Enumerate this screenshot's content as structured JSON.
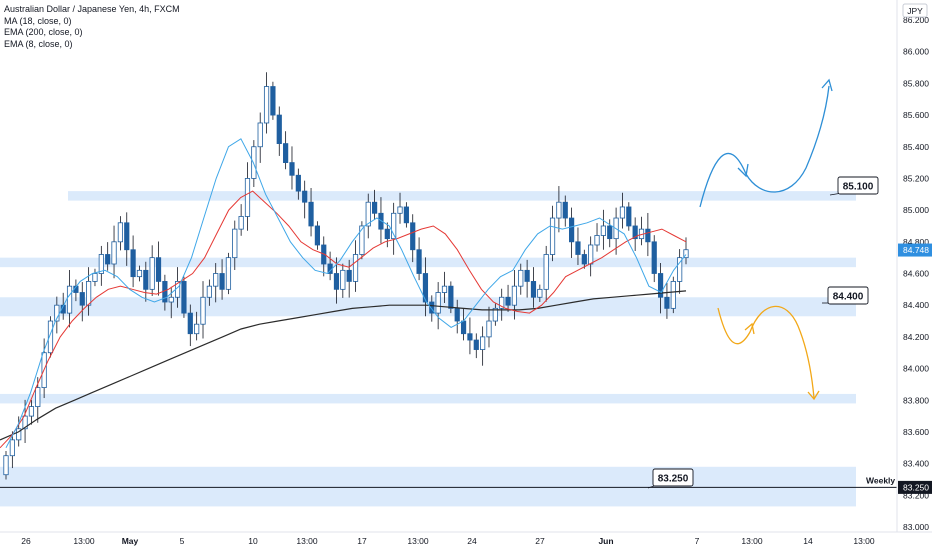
{
  "legend": {
    "title": "Australian Dollar / Japanese Yen, 4h, FXCM",
    "indicators": [
      "MA (18, close, 0)",
      "EMA (200, close, 0)",
      "EMA (8, close, 0)"
    ]
  },
  "currency_badge": "JPY",
  "colors": {
    "zone": "#dbeafb",
    "up": "#1f5fa0",
    "down": "#1f5fa0",
    "ma18": "#e53935",
    "ema200": "#2b2b2b",
    "ema8": "#3fa7e8",
    "bull_arrow": "#2e8fd6",
    "bear_arrow": "#f2a818",
    "last_price_bg": "#2f8fe0",
    "axis_text": "#131722",
    "gridline": "#e0e3eb"
  },
  "chart_data": {
    "type": "candlestick",
    "symbol": "AUDJPY",
    "timeframe": "4h",
    "ylim": [
      83.0,
      86.3
    ],
    "yticks": [
      83.0,
      83.2,
      83.4,
      83.6,
      83.8,
      84.0,
      84.2,
      84.4,
      84.6,
      84.8,
      85.0,
      85.2,
      85.4,
      85.6,
      85.8,
      86.0,
      86.2
    ],
    "ytick_labels": [
      "83.000",
      "83.200",
      "83.400",
      "83.600",
      "83.800",
      "84.000",
      "84.200",
      "84.400",
      "84.600",
      "84.800",
      "85.000",
      "85.200",
      "85.400",
      "85.600",
      "85.800",
      "86.000",
      "86.200"
    ],
    "xtick_labels": [
      "26",
      "13:00",
      "May",
      "5",
      "10",
      "13:00",
      "17",
      "13:00",
      "24",
      "27",
      "Jun",
      "7",
      "13:00",
      "14",
      "13:00"
    ],
    "last_price": 84.748,
    "last_price_label": "84.748",
    "weekly_level": 83.25,
    "weekly_label": "Weekly",
    "weekly_value_label": "83.250",
    "zones": [
      {
        "low": 85.06,
        "high": 85.12
      },
      {
        "low": 84.64,
        "high": 84.7
      },
      {
        "low": 84.33,
        "high": 84.45
      },
      {
        "low": 83.78,
        "high": 83.84
      },
      {
        "low": 83.13,
        "high": 83.38
      }
    ],
    "callouts": [
      {
        "label": "85.100",
        "value": 85.1
      },
      {
        "label": "84.400",
        "value": 84.4
      },
      {
        "label": "83.250",
        "value": 83.25
      }
    ],
    "closes": [
      83.45,
      83.55,
      83.62,
      83.7,
      83.76,
      83.88,
      84.1,
      84.3,
      84.4,
      84.35,
      84.52,
      84.48,
      84.4,
      84.55,
      84.6,
      84.72,
      84.66,
      84.8,
      84.92,
      84.75,
      84.58,
      84.62,
      84.5,
      84.7,
      84.55,
      84.42,
      84.45,
      84.55,
      84.35,
      84.22,
      84.28,
      84.45,
      84.52,
      84.6,
      84.5,
      84.7,
      84.88,
      84.96,
      85.2,
      85.4,
      85.55,
      85.78,
      85.6,
      85.42,
      85.3,
      85.22,
      85.12,
      85.05,
      84.9,
      84.78,
      84.66,
      84.6,
      84.5,
      84.62,
      84.55,
      84.72,
      84.9,
      85.05,
      84.98,
      84.88,
      84.82,
      84.98,
      85.02,
      84.92,
      84.75,
      84.6,
      84.42,
      84.35,
      84.48,
      84.52,
      84.38,
      84.3,
      84.22,
      84.18,
      84.12,
      84.2,
      84.3,
      84.38,
      84.45,
      84.4,
      84.52,
      84.62,
      84.55,
      84.45,
      84.5,
      84.72,
      84.95,
      85.05,
      84.95,
      84.8,
      84.72,
      84.66,
      84.78,
      84.84,
      84.9,
      84.82,
      84.95,
      85.02,
      84.9,
      84.82,
      84.88,
      84.8,
      84.6,
      84.45,
      84.38,
      84.55,
      84.7,
      84.75
    ]
  },
  "ma18": [
    83.5,
    83.58,
    83.7,
    83.88,
    84.05,
    84.2,
    84.3,
    84.38,
    84.45,
    84.5,
    84.52,
    84.5,
    84.48,
    84.47,
    84.5,
    84.55,
    84.6,
    84.7,
    84.85,
    85.0,
    85.08,
    85.12,
    85.05,
    84.98,
    84.9,
    84.8,
    84.75,
    84.72,
    84.66,
    84.64,
    84.7,
    84.76,
    84.8,
    84.82,
    84.85,
    84.88,
    84.9,
    84.85,
    84.75,
    84.62,
    84.5,
    84.42,
    84.38,
    84.36,
    84.35,
    84.4,
    84.48,
    84.58,
    84.62,
    84.66,
    84.7,
    84.75,
    84.8,
    84.84,
    84.86,
    84.88,
    84.84,
    84.8
  ],
  "ema200": [
    83.55,
    83.6,
    83.68,
    83.75,
    83.8,
    83.85,
    83.9,
    83.95,
    84.0,
    84.05,
    84.1,
    84.15,
    84.2,
    84.25,
    84.28,
    84.3,
    84.32,
    84.34,
    84.36,
    84.38,
    84.39,
    84.4,
    84.4,
    84.4,
    84.39,
    84.38,
    84.37,
    84.37,
    84.37,
    84.38,
    84.4,
    84.42,
    84.44,
    84.45,
    84.46,
    84.47,
    84.48,
    84.49
  ],
  "ema8": [
    83.5,
    83.65,
    83.85,
    84.1,
    84.3,
    84.45,
    84.55,
    84.6,
    84.62,
    84.58,
    84.5,
    84.45,
    84.42,
    84.45,
    84.52,
    84.7,
    84.95,
    85.2,
    85.4,
    85.45,
    85.3,
    85.1,
    84.95,
    84.8,
    84.7,
    84.62,
    84.6,
    84.68,
    84.8,
    84.9,
    84.95,
    84.9,
    84.75,
    84.58,
    84.42,
    84.32,
    84.26,
    84.3,
    84.4,
    84.5,
    84.58,
    84.62,
    84.75,
    84.85,
    84.9,
    84.88,
    84.9,
    84.92,
    84.95,
    84.9,
    84.85,
    84.7,
    84.52,
    84.48,
    84.62,
    84.72
  ]
}
